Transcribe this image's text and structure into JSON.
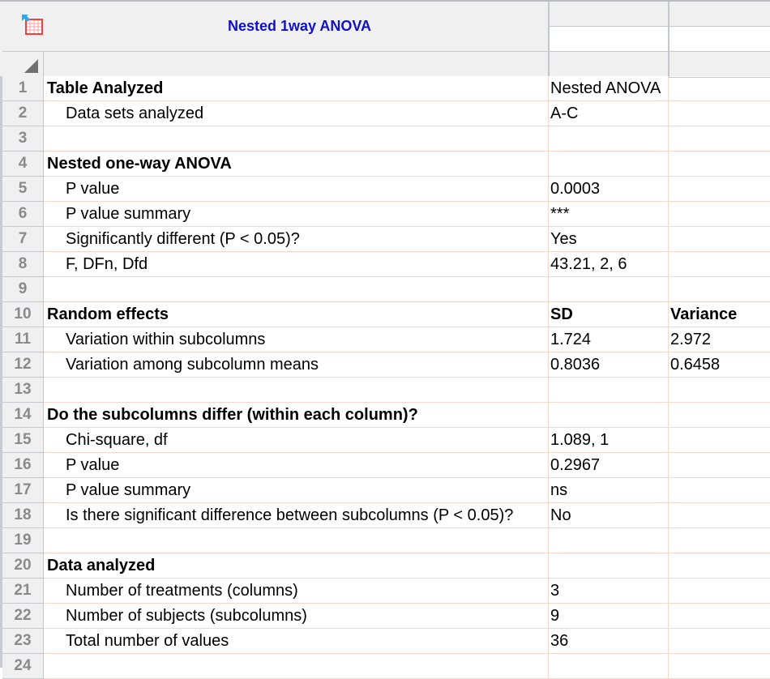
{
  "sheet": {
    "title": "Nested 1way ANOVA",
    "icon": "results-table-icon"
  },
  "rows": [
    {
      "n": "1",
      "a": "Table Analyzed",
      "b": "Nested ANOVA",
      "c": "",
      "style": "bold"
    },
    {
      "n": "2",
      "a": "Data sets analyzed",
      "b": "A-C",
      "c": "",
      "style": "indent"
    },
    {
      "n": "3",
      "a": "",
      "b": "",
      "c": "",
      "style": "indent"
    },
    {
      "n": "4",
      "a": "Nested one-way ANOVA",
      "b": "",
      "c": "",
      "style": "bold"
    },
    {
      "n": "5",
      "a": "P value",
      "b": "0.0003",
      "c": "",
      "style": "indent"
    },
    {
      "n": "6",
      "a": "P value summary",
      "b": "***",
      "c": "",
      "style": "indent"
    },
    {
      "n": "7",
      "a": "Significantly different (P < 0.05)?",
      "b": "Yes",
      "c": "",
      "style": "indent"
    },
    {
      "n": "8",
      "a": "F, DFn, Dfd",
      "b": "43.21, 2, 6",
      "c": "",
      "style": "indent"
    },
    {
      "n": "9",
      "a": "",
      "b": "",
      "c": "",
      "style": "indent"
    },
    {
      "n": "10",
      "a": "Random effects",
      "b": "SD",
      "c": "Variance",
      "style": "boldall"
    },
    {
      "n": "11",
      "a": "Variation within subcolumns",
      "b": "1.724",
      "c": "2.972",
      "style": "indent"
    },
    {
      "n": "12",
      "a": "Variation among subcolumn means",
      "b": "0.8036",
      "c": "0.6458",
      "style": "indent"
    },
    {
      "n": "13",
      "a": "",
      "b": "",
      "c": "",
      "style": "indent"
    },
    {
      "n": "14",
      "a": "Do the subcolumns differ (within each column)?",
      "b": "",
      "c": "",
      "style": "bold"
    },
    {
      "n": "15",
      "a": "Chi-square, df",
      "b": "1.089, 1",
      "c": "",
      "style": "indent"
    },
    {
      "n": "16",
      "a": "P value",
      "b": "0.2967",
      "c": "",
      "style": "indent"
    },
    {
      "n": "17",
      "a": "P value summary",
      "b": "ns",
      "c": "",
      "style": "indent"
    },
    {
      "n": "18",
      "a": "Is there significant difference between subcolumns (P < 0.05)?",
      "b": "No",
      "c": "",
      "style": "indent"
    },
    {
      "n": "19",
      "a": "",
      "b": "",
      "c": "",
      "style": "indent"
    },
    {
      "n": "20",
      "a": "Data analyzed",
      "b": "",
      "c": "",
      "style": "bold"
    },
    {
      "n": "21",
      "a": "Number of treatments (columns)",
      "b": "3",
      "c": "",
      "style": "indent"
    },
    {
      "n": "22",
      "a": "Number of subjects (subcolumns)",
      "b": "9",
      "c": "",
      "style": "indent"
    },
    {
      "n": "23",
      "a": "Total number of values",
      "b": "36",
      "c": "",
      "style": "indent"
    },
    {
      "n": "24",
      "a": "",
      "b": "",
      "c": "",
      "style": "indent"
    }
  ]
}
